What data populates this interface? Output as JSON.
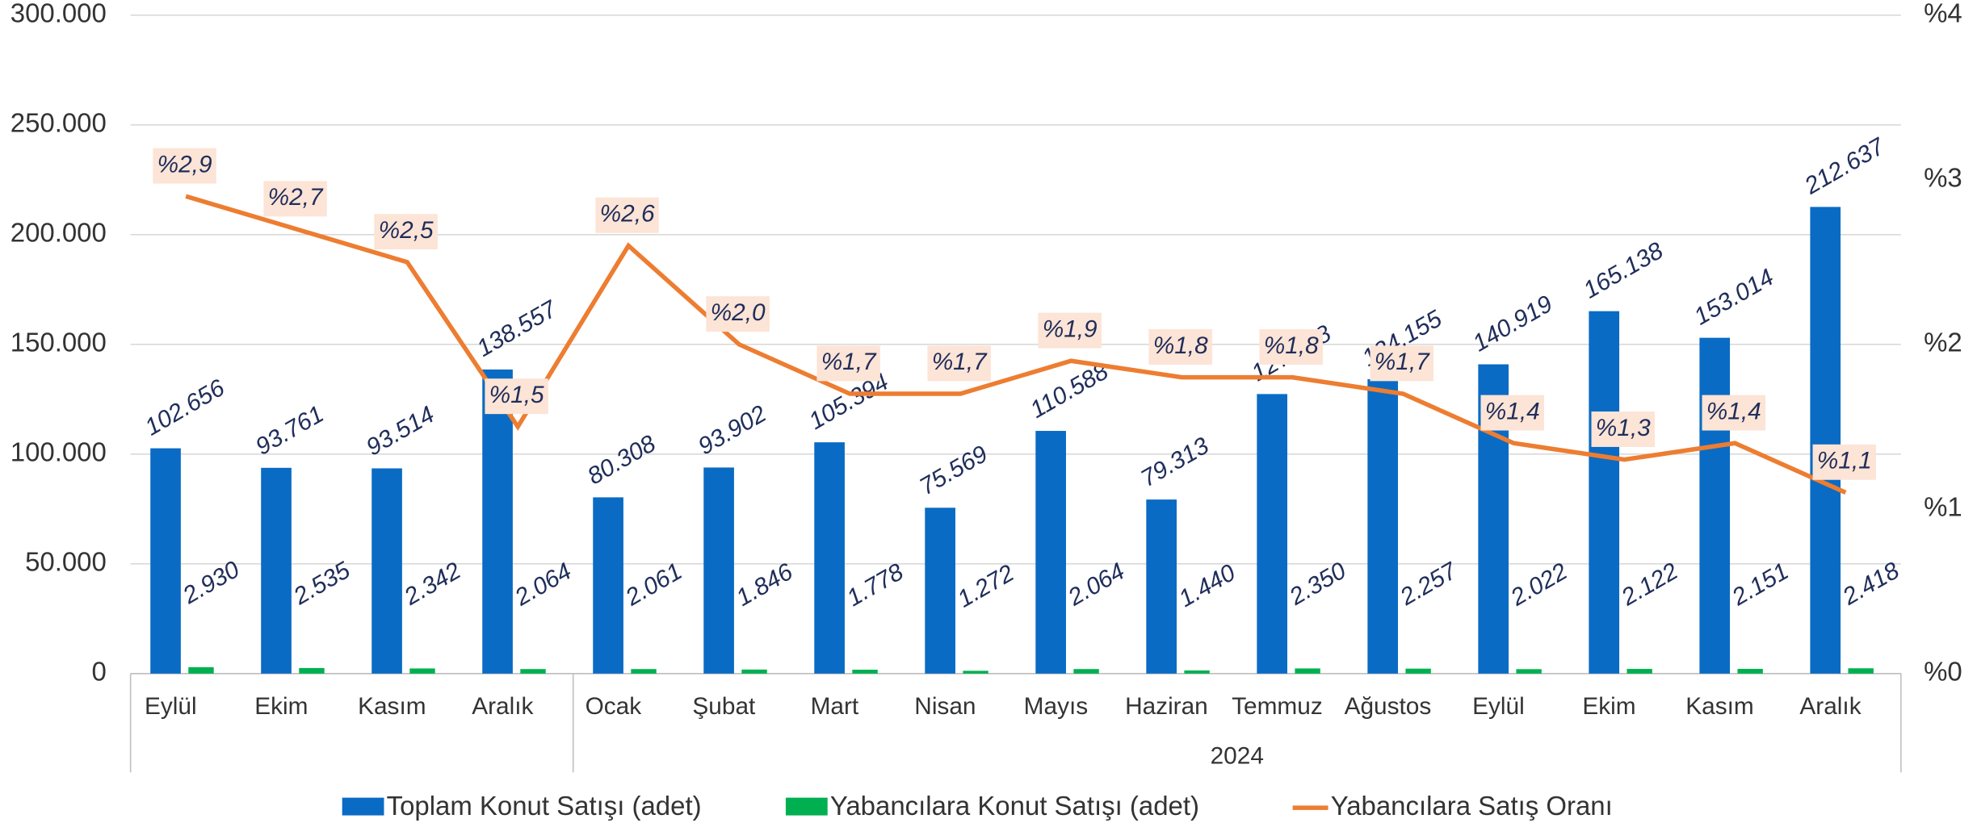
{
  "chart_data": {
    "type": "bar_line",
    "categories": [
      "Eylül",
      "Ekim",
      "Kasım",
      "Aralık",
      "Ocak",
      "Şubat",
      "Mart",
      "Nisan",
      "Mayıs",
      "Haziran",
      "Temmuz",
      "Ağustos",
      "Eylül",
      "Ekim",
      "Kasım",
      "Aralık"
    ],
    "group_label": "2024",
    "series": [
      {
        "name": "Toplam Konut Satışı (adet)",
        "color": "#0a6bc4",
        "kind": "bar",
        "values": [
          102656,
          93761,
          93514,
          138557,
          80308,
          93902,
          105394,
          75569,
          110588,
          79313,
          127378,
          134155,
          140919,
          165138,
          153014,
          212637
        ],
        "value_labels": [
          "102.656",
          "93.761",
          "93.514",
          "138.557",
          "80.308",
          "93.902",
          "105.394",
          "75.569",
          "110.588",
          "79.313",
          "127.378",
          "134.155",
          "140.919",
          "165.138",
          "153.014",
          "212.637"
        ]
      },
      {
        "name": "Yabancılara Konut Satışı (adet)",
        "color": "#00b050",
        "kind": "bar",
        "values": [
          2930,
          2535,
          2342,
          2064,
          2061,
          1846,
          1778,
          1272,
          2064,
          1440,
          2350,
          2257,
          2022,
          2122,
          2151,
          2418
        ],
        "value_labels": [
          "2.930",
          "2.535",
          "2.342",
          "2.064",
          "2.061",
          "1.846",
          "1.778",
          "1.272",
          "2.064",
          "1.440",
          "2.350",
          "2.257",
          "2.022",
          "2.122",
          "2.151",
          "2.418"
        ]
      },
      {
        "name": "Yabancılara Satış Oranı",
        "color": "#ed7d31",
        "kind": "line",
        "axis": "y2",
        "values": [
          2.9,
          2.7,
          2.5,
          1.5,
          2.6,
          2.0,
          1.7,
          1.7,
          1.9,
          1.8,
          1.8,
          1.7,
          1.4,
          1.3,
          1.4,
          1.1
        ],
        "value_labels": [
          "%2,9",
          "%2,7",
          "%2,5",
          "%1,5",
          "%2,6",
          "%2,0",
          "%1,7",
          "%1,7",
          "%1,9",
          "%1,8",
          "%1,8",
          "%1,7",
          "%1,4",
          "%1,3",
          "%1,4",
          "%1,1"
        ]
      }
    ],
    "ylim": [
      0,
      300000
    ],
    "yticks": [
      0,
      {
        "value": 50000,
        "label": "50.000"
      },
      {
        "value": 100000,
        "label": "100.000"
      },
      {
        "value": 150000,
        "label": "150.000"
      },
      {
        "value": 200000,
        "label": "200.000"
      },
      {
        "value": 250000,
        "label": "250.000"
      },
      {
        "value": 300000,
        "label": "300.000"
      }
    ],
    "y2lim": [
      0,
      4
    ],
    "y2ticks": [
      {
        "value": 0,
        "label": "%0"
      },
      {
        "value": 1,
        "label": "%1"
      },
      {
        "value": 2,
        "label": "%2"
      },
      {
        "value": 3,
        "label": "%3"
      },
      {
        "value": 4,
        "label": "%4"
      }
    ],
    "grid": true,
    "legend": "bottom"
  }
}
